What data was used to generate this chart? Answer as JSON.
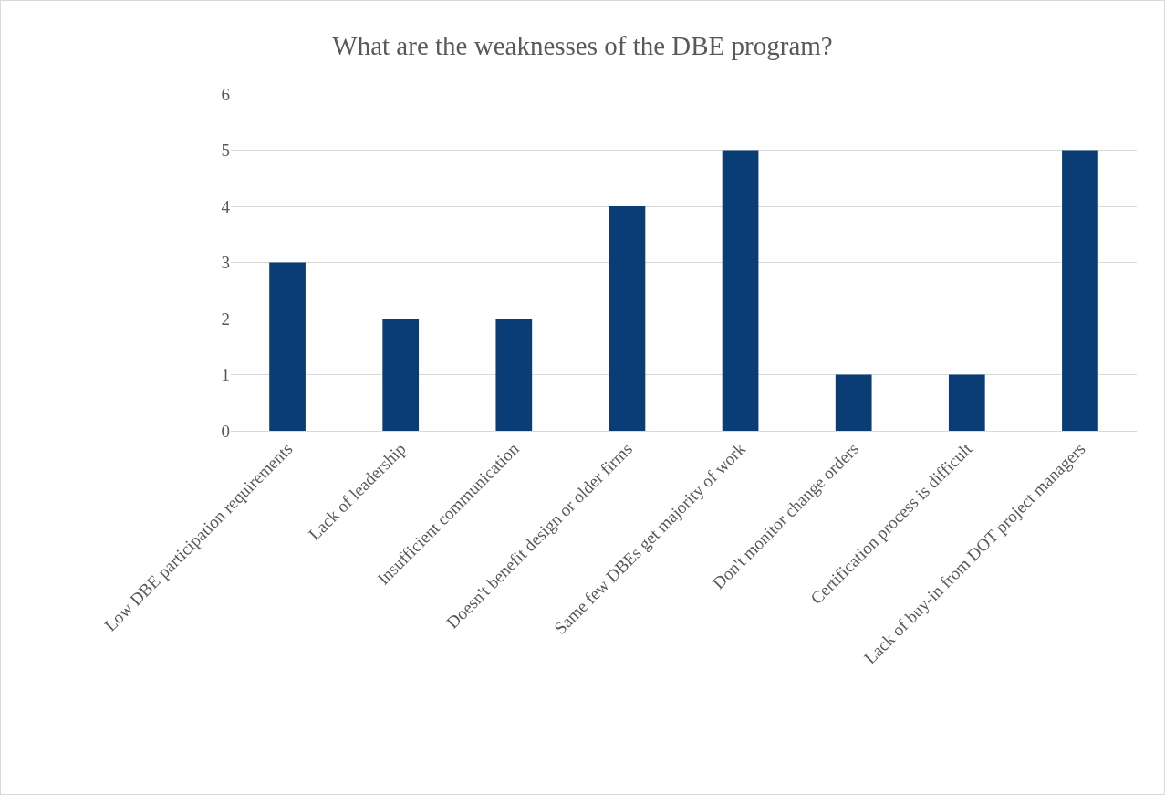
{
  "chart_data": {
    "type": "bar",
    "title": "What are the weaknesses of the DBE program?",
    "categories": [
      "Low DBE participation requirements",
      "Lack of leadership",
      "Insufficient communication",
      "Doesn't benefit design or older firms",
      "Same few DBEs get majority of work",
      "Don't monitor change orders",
      "Certification process is difficult",
      "Lack of buy-in from DOT project managers"
    ],
    "values": [
      3,
      2,
      2,
      4,
      5,
      1,
      1,
      5
    ],
    "color": "#0a3d75",
    "ylim": [
      0,
      6
    ],
    "yticks": [
      0,
      1,
      2,
      3,
      4,
      5,
      6
    ],
    "grid": "y",
    "legend": false
  }
}
